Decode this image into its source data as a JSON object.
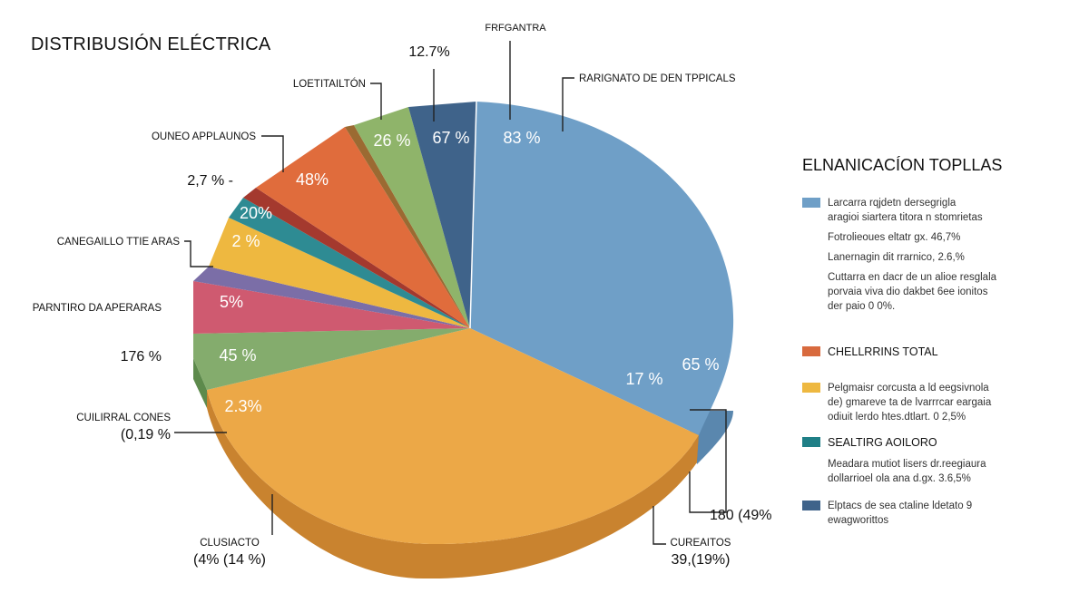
{
  "chart_data": {
    "type": "pie",
    "title": "DISTRIBUSIÓN ELÉCTRICA",
    "slices": [
      {
        "label": "83 %",
        "color": "#6f9fc7"
      },
      {
        "label": "17 %",
        "color": "#6f9fc7"
      },
      {
        "label": "65 %",
        "color": "#6f9fc7"
      },
      {
        "label": "2.3%",
        "color": "#eca847"
      },
      {
        "label": "45 %",
        "color": "#84ac6d"
      },
      {
        "label": "5%",
        "color": "#cf5a70"
      },
      {
        "label": "",
        "color": "#7b6ea7"
      },
      {
        "label": "2 %",
        "color": "#eeb840"
      },
      {
        "label": "20%",
        "color": "#2e8b93"
      },
      {
        "label": "",
        "color": "#a4392e"
      },
      {
        "label": "48%",
        "color": "#e06c3c"
      },
      {
        "label": "26 %",
        "color": "#8fb46a"
      },
      {
        "label": "67 %",
        "color": "#3f638a"
      }
    ],
    "callouts": [
      {
        "id": "frfgantra",
        "lines": [
          "FRFGANTRA"
        ]
      },
      {
        "id": "top-pct",
        "lines": [
          "12.7%"
        ]
      },
      {
        "id": "rarignato",
        "lines": [
          "RARIGNATO DE DEN TPPICALS"
        ]
      },
      {
        "id": "loetitaiton",
        "lines": [
          "LOETITAILTÓN"
        ]
      },
      {
        "id": "ouneo",
        "lines": [
          "OUNEO APPLAUNOS"
        ]
      },
      {
        "id": "pct-27",
        "lines": [
          "2,7 % -"
        ]
      },
      {
        "id": "canegailo",
        "lines": [
          "CANEGAILLO TTIE ARAS"
        ]
      },
      {
        "id": "parntiro",
        "lines": [
          "PARNTIRO DA APERARAS"
        ]
      },
      {
        "id": "pct-176",
        "lines": [
          "176 %"
        ]
      },
      {
        "id": "cuilirral",
        "lines": [
          "CUILIRRAL CONES",
          "(0,19 %"
        ]
      },
      {
        "id": "clusiacto",
        "lines": [
          "CLUSIACTO",
          "(4% (14 %)"
        ]
      },
      {
        "id": "cureaitos",
        "lines": [
          "CUREAITOS",
          "39,(19%)"
        ]
      },
      {
        "id": "pct-180",
        "lines": [
          "180 (49%"
        ]
      }
    ]
  },
  "legend": {
    "title": "ELNANICACÍON TOPLLAS",
    "items": [
      {
        "color": "#6f9fc7",
        "bold": false,
        "lines": [
          "Larcarra rqjdetn dersegrigla",
          "aragioi siartera titora n stomrietas",
          "Fotrolieoues eltatr gx. 46,7%",
          "Lanernagin dit rrarnico, 2.6,%",
          "Cuttarra en dacr de un alioe resglala",
          "porvaia viva dio dakbet 6ee ionitos",
          "der paio 0 0%."
        ]
      },
      {
        "color": "#d86a3e",
        "bold": true,
        "lines": [
          "CHELLRRINS TOTAL"
        ]
      },
      {
        "color": "#eeb840",
        "bold": false,
        "lines": [
          "Pelgmaisr corcusta a ld eegsivnola",
          "de) gmareve ta de lvarrrcar eargaia",
          "odiuit lerdo htes.dtlart. 0 2,5%"
        ]
      },
      {
        "color": "#1f7f86",
        "bold": true,
        "lines": [
          "SEALTIRG AOILORO"
        ]
      },
      {
        "color": "#ffffff",
        "bold": false,
        "lines": [
          "Meadara mutiot lisers dr.reegiaura",
          "dollarrioel ola ana d.gx. 3.6,5%"
        ]
      },
      {
        "color": "#3f638a",
        "bold": false,
        "lines": [
          "Elptacs de sea ctaline ldetato 9",
          "ewagworittos"
        ]
      }
    ]
  }
}
